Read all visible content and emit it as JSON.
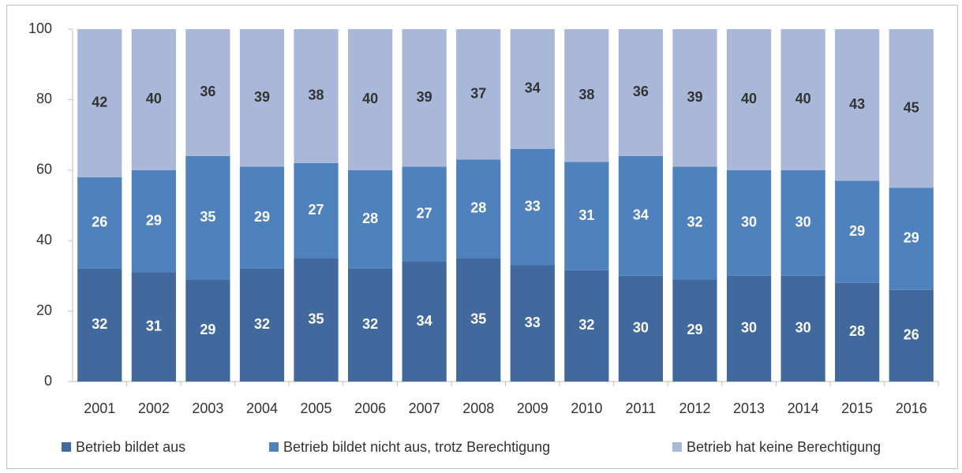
{
  "chart_data": {
    "type": "stacked_bar",
    "categories": [
      "2001",
      "2002",
      "2003",
      "2004",
      "2005",
      "2006",
      "2007",
      "2008",
      "2009",
      "2010",
      "2011",
      "2012",
      "2013",
      "2014",
      "2015",
      "2016"
    ],
    "series": [
      {
        "name": "Betrieb bildet aus",
        "color": "#41699e",
        "values": [
          32,
          31,
          29,
          32,
          35,
          32,
          34,
          35,
          33,
          31.6,
          30,
          29,
          30,
          30,
          28,
          26
        ],
        "value_labels": [
          "32",
          "31",
          "29",
          "32",
          "35",
          "32",
          "34",
          "35",
          "33",
          "32",
          "30",
          "29",
          "30",
          "30",
          "28",
          "26"
        ]
      },
      {
        "name": "Betrieb bildet nicht aus, trotz Berechtigung",
        "color": "#4f81bd",
        "values": [
          26,
          29,
          35,
          29,
          27,
          28,
          27,
          28,
          33,
          30.7,
          34,
          32,
          30,
          30,
          29,
          29
        ],
        "value_labels": [
          "26",
          "29",
          "35",
          "29",
          "27",
          "28",
          "27",
          "28",
          "33",
          "31",
          "34",
          "32",
          "30",
          "30",
          "29",
          "29"
        ]
      },
      {
        "name": "Betrieb hat keine Berechtigung",
        "color": "#a9b8d8",
        "values": [
          42,
          40,
          36,
          39,
          38,
          40,
          39,
          37,
          34,
          37.7,
          36,
          39,
          40,
          40,
          43,
          45
        ],
        "value_labels": [
          "42",
          "40",
          "36",
          "39",
          "38",
          "40",
          "39",
          "37",
          "34",
          "38",
          "36",
          "39",
          "40",
          "40",
          "43",
          "45"
        ]
      }
    ],
    "ylim": [
      0,
      100
    ],
    "yticks": [
      0,
      20,
      40,
      60,
      80,
      100
    ],
    "legend": "bottom"
  }
}
